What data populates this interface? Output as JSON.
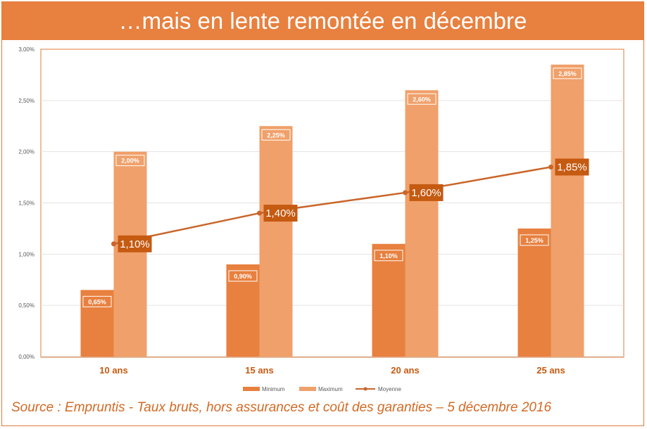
{
  "title": "…mais en lente remontée en décembre",
  "source": "Source : Empruntis - Taux bruts, hors assurances et coût des garanties – 5 décembre 2016",
  "colors": {
    "minimum": "#e8803f",
    "maximum": "#f0a06a",
    "moyenne": "#c9652a",
    "avg_label_bg": "#c55a11",
    "title_bg": "#e8803f",
    "accent_text": "#c55a11"
  },
  "chart_data": {
    "type": "bar",
    "categories": [
      "10 ans",
      "15 ans",
      "20 ans",
      "25 ans"
    ],
    "series": [
      {
        "name": "Minimum",
        "type": "bar",
        "values": [
          0.65,
          0.9,
          1.1,
          1.25
        ],
        "labels": [
          "0,65%",
          "0,90%",
          "1,10%",
          "1,25%"
        ]
      },
      {
        "name": "Maximum",
        "type": "bar",
        "values": [
          2.0,
          2.25,
          2.6,
          2.85
        ],
        "labels": [
          "2,00%",
          "2,25%",
          "2,60%",
          "2,85%"
        ]
      },
      {
        "name": "Moyenne",
        "type": "line",
        "values": [
          1.1,
          1.4,
          1.6,
          1.85
        ],
        "labels": [
          "1,10%",
          "1,40%",
          "1,60%",
          "1,85%"
        ]
      }
    ],
    "ylim": [
      0,
      3.0
    ],
    "yticks": [
      0,
      0.5,
      1.0,
      1.5,
      2.0,
      2.5,
      3.0
    ],
    "ytick_labels": [
      "0,00%",
      "0,50%",
      "1,00%",
      "1,50%",
      "2,00%",
      "2,50%",
      "3,00%"
    ],
    "grid": true,
    "legend": "bottom-center",
    "xlabel": "",
    "ylabel": ""
  }
}
